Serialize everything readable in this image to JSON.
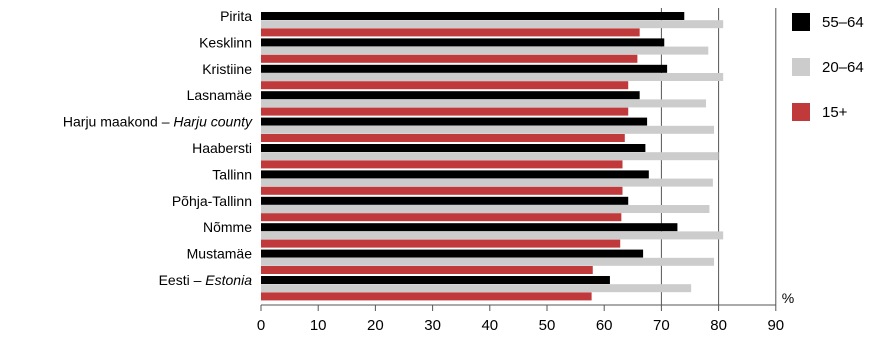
{
  "chart_data": {
    "type": "bar",
    "orientation": "horizontal",
    "categories": [
      "Pirita",
      "Kesklinn",
      "Kristiine",
      "Lasnamäe",
      "Harju maakond – Harju county",
      "Haabersti",
      "Tallinn",
      "Põhja-Tallinn",
      "Nõmme",
      "Mustamäe",
      "Eesti – Estonia"
    ],
    "category_parts": [
      [
        "Pirita",
        ""
      ],
      [
        "Kesklinn",
        ""
      ],
      [
        "Kristiine",
        ""
      ],
      [
        "Lasnamäe",
        ""
      ],
      [
        "Harju maakond – ",
        "Harju county"
      ],
      [
        "Haabersti",
        ""
      ],
      [
        "Tallinn",
        ""
      ],
      [
        "Põhja-Tallinn",
        ""
      ],
      [
        "Nõmme",
        ""
      ],
      [
        "Mustamäe",
        ""
      ],
      [
        "Eesti – ",
        "Estonia"
      ]
    ],
    "series": [
      {
        "name": "55–64",
        "color": "#000000",
        "values": [
          74.0,
          70.5,
          71.0,
          66.2,
          67.5,
          67.2,
          67.8,
          64.2,
          72.8,
          66.8,
          61.0
        ]
      },
      {
        "name": "20–64",
        "color": "#cccccc",
        "values": [
          80.8,
          78.2,
          80.8,
          77.8,
          79.2,
          80.0,
          79.0,
          78.4,
          80.8,
          79.2,
          75.2
        ]
      },
      {
        "name": "15+",
        "color": "#c0393b",
        "values": [
          66.2,
          65.8,
          64.2,
          64.2,
          63.6,
          63.2,
          63.2,
          63.0,
          62.8,
          58.0,
          57.8
        ]
      }
    ],
    "xlim": [
      0,
      90
    ],
    "xticks": [
      "0",
      "10",
      "20",
      "30",
      "40",
      "50",
      "60",
      "70",
      "80",
      "90"
    ],
    "unit_label": "%",
    "vertical_gridlines_at": [
      70,
      80
    ],
    "legend_position": "right"
  }
}
